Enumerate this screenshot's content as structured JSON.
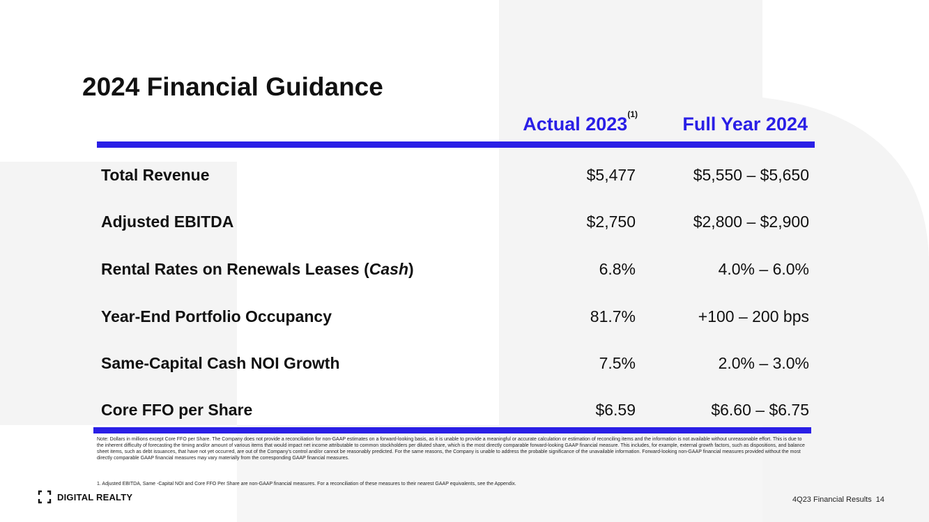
{
  "title": "2024 Financial Guidance",
  "columns": {
    "actual": "Actual 2023",
    "actual_sup": "(1)",
    "full_year": "Full Year 2024"
  },
  "rows": [
    {
      "label": "Total Revenue",
      "actual": "$5,477",
      "guidance": "$5,550 – $5,650"
    },
    {
      "label": "Adjusted EBITDA",
      "actual": "$2,750",
      "guidance": "$2,800 – $2,900"
    },
    {
      "label_pre": "Rental Rates on Renewals Leases (",
      "label_italic": "Cash",
      "label_post": ")",
      "actual": "6.8%",
      "guidance": "4.0% – 6.0%"
    },
    {
      "label": "Year-End Portfolio Occupancy",
      "actual": "81.7%",
      "guidance": "+100 – 200 bps"
    },
    {
      "label": "Same-Capital Cash NOI Growth",
      "actual": "7.5%",
      "guidance": "2.0% – 3.0%"
    },
    {
      "label": "Core FFO per Share",
      "actual": "$6.59",
      "guidance": "$6.60 – $6.75"
    }
  ],
  "note": "Note: Dollars in millions except Core FFO per Share. The Company does not provide a reconciliation for non-GAAP estimates on a forward-looking basis, as it is unable to provide a meaningful or accurate calculation or estimation of reconciling items and the information is not available without unreasonable effort. This is due to the inherent difficulty of forecasting the timing and/or amount of various items that would impact net income attributable to common stockholders per diluted share, which is the most directly comparable forward-looking GAAP financial measure. This includes, for example, external growth factors, such as dispositions, and balance sheet items, such as debt issuances, that have not yet occurred, are out of the Company's control and/or cannot be reasonably predicted. For the same reasons, the Company is unable to address the probable significance of the unavailable information. Forward-looking non-GAAP financial measures provided without the most directly comparable GAAP financial measures may vary materially from the corresponding GAAP financial measures.",
  "footnote": "1. Adjusted EBITDA, Same -Capital NOI and Core FFO Per Share are non-GAAP financial measures. For a reconciliation of these measures to their nearest GAAP equivalents, see the Appendix.",
  "logo": {
    "text": "DIGITAL REALTY",
    "mark": "[ ]"
  },
  "footer": {
    "report": "4Q23 Financial Results",
    "page": "14"
  },
  "colors": {
    "accent": "#2a1fe6",
    "background_shape": "#f4f4f4"
  }
}
